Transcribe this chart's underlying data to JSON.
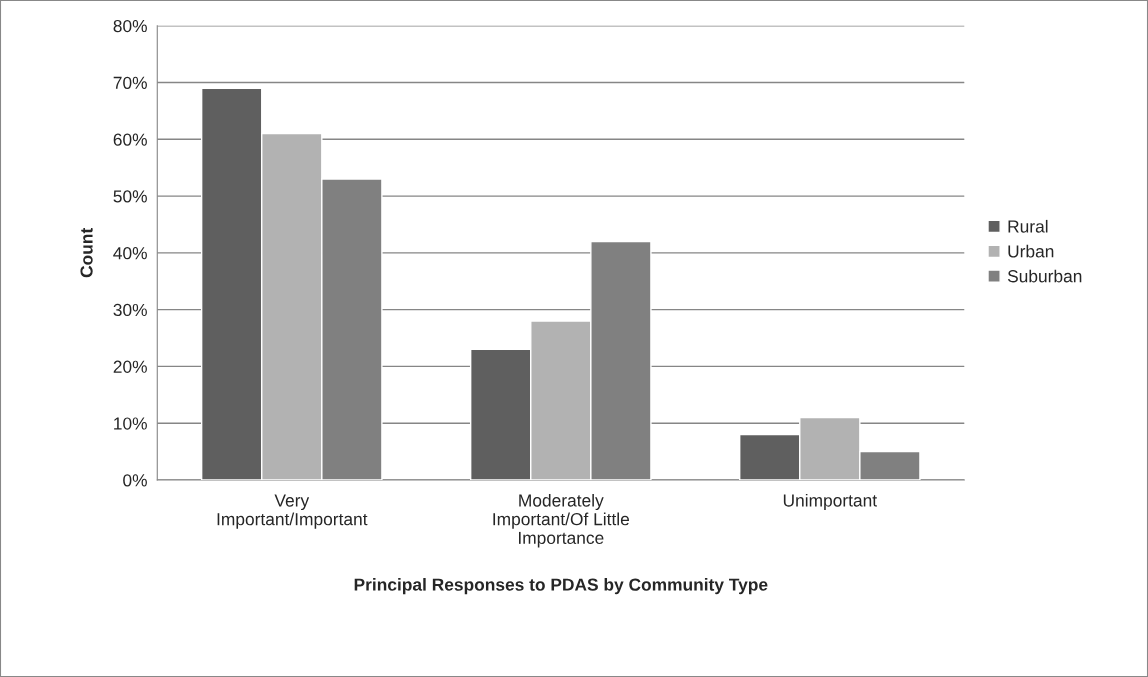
{
  "chart_data": {
    "type": "bar",
    "xlabel": "Principal Responses to PDAS by Community Type",
    "ylabel": "Count",
    "categories": [
      "Very\nImportant/Important",
      "Moderately\nImportant/Of Little\nImportance",
      "Unimportant"
    ],
    "series": [
      {
        "name": "Rural",
        "color": "#5f5f5f",
        "values": [
          69,
          23,
          8
        ]
      },
      {
        "name": "Urban",
        "color": "#b2b2b2",
        "values": [
          61,
          28,
          11
        ]
      },
      {
        "name": "Suburban",
        "color": "#808080",
        "values": [
          53,
          42,
          5
        ]
      }
    ],
    "ylim": [
      0,
      80
    ],
    "yticks": [
      {
        "value": 0,
        "label": "0%"
      },
      {
        "value": 10,
        "label": "10%"
      },
      {
        "value": 20,
        "label": "20%"
      },
      {
        "value": 30,
        "label": "30%"
      },
      {
        "value": 40,
        "label": "40%"
      },
      {
        "value": 50,
        "label": "50%"
      },
      {
        "value": 60,
        "label": "60%"
      },
      {
        "value": 70,
        "label": "70%"
      },
      {
        "value": 80,
        "label": "80%"
      }
    ],
    "grid": "y",
    "legend": "right"
  }
}
